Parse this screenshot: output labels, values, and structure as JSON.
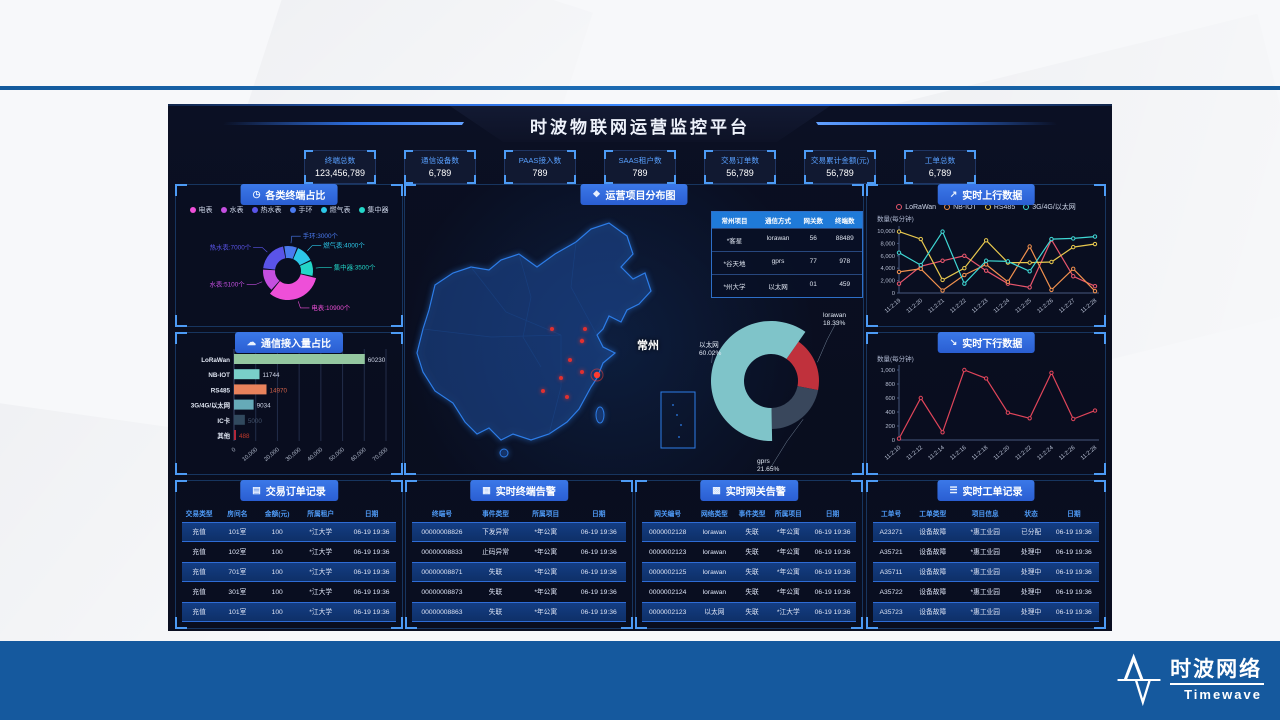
{
  "header": {
    "title": "时波物联网运营监控平台"
  },
  "stats": [
    {
      "label": "终端总数",
      "value": "123,456,789"
    },
    {
      "label": "通信设备数",
      "value": "6,789"
    },
    {
      "label": "PAAS接入数",
      "value": "789"
    },
    {
      "label": "SAAS租户数",
      "value": "789"
    },
    {
      "label": "交易订单数",
      "value": "56,789"
    },
    {
      "label": "交易累计金额(元)",
      "value": "56,789"
    },
    {
      "label": "工单总数",
      "value": "6,789"
    }
  ],
  "panels": {
    "terminal_share": {
      "title": "各类终端占比",
      "icon": "clock-icon",
      "legend": [
        {
          "name": "电表",
          "color": "#ee4fd8"
        },
        {
          "name": "水表",
          "color": "#c44fe0"
        },
        {
          "name": "热水表",
          "color": "#5a54e8"
        },
        {
          "name": "手环",
          "color": "#4a7bf0"
        },
        {
          "name": "燃气表",
          "color": "#2cc7e8"
        },
        {
          "name": "集中器",
          "color": "#23d6c8"
        }
      ],
      "chart": {
        "type": "pie",
        "slices": [
          {
            "name": "手环",
            "value": 3000,
            "color": "#4a7bf0",
            "label": "手环:3000个"
          },
          {
            "name": "燃气表",
            "value": 4000,
            "color": "#2cc7e8",
            "label": "燃气表:4000个"
          },
          {
            "name": "集中器",
            "value": 3500,
            "color": "#23d6c8",
            "label": "集中器:3500个"
          },
          {
            "name": "电表",
            "value": 10900,
            "color": "#ee4fd8",
            "label": "电表:10900个",
            "r": 29
          },
          {
            "name": "水表",
            "value": 5100,
            "color": "#c44fe0",
            "label": "水表:5100个"
          },
          {
            "name": "热水表",
            "value": 7000,
            "color": "#5a54e8",
            "label": "热水表:7000个"
          }
        ]
      }
    },
    "comm_share": {
      "title": "通信接入量占比",
      "icon": "cloud-icon",
      "chart": {
        "type": "bar",
        "categories": [
          "LoRaWan",
          "NB-IOT",
          "RS485",
          "3G/4G/以太网",
          "IC卡",
          "其他"
        ],
        "values": [
          60230,
          11744,
          14970,
          9034,
          5000,
          488
        ],
        "colors": [
          "#94c7a0",
          "#79cfc9",
          "#e8825c",
          "#66aab8",
          "#31495e",
          "#b3273a"
        ],
        "value_colors": [
          "#cfd6e8",
          "#cfd6e8",
          "#d06048",
          "#cfd6e8",
          "#44546c",
          "#c0392b"
        ],
        "xticks": [
          "0",
          "10,000",
          "20,000",
          "30,000",
          "40,000",
          "50,000",
          "60,000",
          "70,000"
        ],
        "xmax": 70000
      }
    },
    "map": {
      "title": "运营项目分布图",
      "icon": "map-icon",
      "city_label": "常州",
      "table": {
        "headers": [
          "常州项目",
          "通信方式",
          "网关数",
          "终端数"
        ],
        "rows": [
          [
            "*客星",
            "lorawan",
            "56",
            "88489"
          ],
          [
            "*谷天地",
            "gprs",
            "77",
            "978"
          ],
          [
            "*州大学",
            "以太网",
            "01",
            "459"
          ]
        ]
      },
      "chart": {
        "type": "pie",
        "slices": [
          {
            "name": "lorawan",
            "value": 18.33,
            "color": "#c0313c",
            "pct": "18.33%"
          },
          {
            "name": "gprs",
            "value": 21.65,
            "color": "#39475c",
            "pct": "21.65%"
          },
          {
            "name": "以太网",
            "value": 60.02,
            "color": "#7fc4c9",
            "pct": "60.02%",
            "r": 60
          }
        ]
      }
    },
    "up_data": {
      "title": "实时上行数据",
      "icon": "up-chart-icon",
      "ylabel": "数量(每分钟)",
      "chart": {
        "type": "line",
        "x": [
          "11:2:19",
          "11:2:20",
          "11:2:21",
          "11:2:22",
          "11:2:23",
          "11:2:24",
          "11:2:25",
          "11:2:26",
          "11:2:27",
          "11:2:28"
        ],
        "ymax": 10000,
        "yticks": [
          "0",
          "2,000",
          "4,000",
          "6,000",
          "8,000",
          "10,000"
        ],
        "series": [
          {
            "name": "LoRaWan",
            "color": "#e8566c",
            "values": [
              1500,
              4300,
              5200,
              6000,
              3600,
              1500,
              900,
              8600,
              2700,
              1100
            ]
          },
          {
            "name": "NB-IOT",
            "color": "#f2914e",
            "values": [
              3400,
              3900,
              400,
              2900,
              4600,
              1800,
              7500,
              500,
              3900,
              300
            ]
          },
          {
            "name": "RS485",
            "color": "#e8c84e",
            "values": [
              9900,
              8700,
              2100,
              4000,
              8500,
              4900,
              4900,
              5000,
              7400,
              7900
            ]
          },
          {
            "name": "3G/4G/以太网",
            "color": "#3fd8d4",
            "values": [
              6500,
              4500,
              9900,
              1500,
              5200,
              5100,
              3500,
              8700,
              8800,
              9100
            ]
          }
        ]
      }
    },
    "down_data": {
      "title": "实时下行数据",
      "icon": "down-chart-icon",
      "ylabel": "数量(每分钟)",
      "chart": {
        "type": "line",
        "x": [
          "11:2:10",
          "11:2:12",
          "11:2:14",
          "11:2:16",
          "11:2:18",
          "11:2:20",
          "11:2:22",
          "11:2:24",
          "11:2:26",
          "11:2:28"
        ],
        "ymax": 1000,
        "yticks": [
          "0",
          "200",
          "400",
          "600",
          "800",
          "1,000"
        ],
        "series": [
          {
            "name": "下行",
            "color": "#e0455a",
            "values": [
              20,
              600,
              110,
              1000,
              880,
              390,
              310,
              960,
              300,
              420
            ]
          }
        ]
      }
    },
    "orders": {
      "title": "交易订单记录",
      "icon": "order-icon",
      "headers": [
        "交易类型",
        "房间名",
        "金额(元)",
        "所属租户",
        "日期"
      ],
      "widths": [
        16,
        20,
        17,
        24,
        23
      ],
      "rows": [
        [
          "充值",
          "101室",
          "100",
          "*江大学",
          "06-19 19:36"
        ],
        [
          "充值",
          "102室",
          "100",
          "*江大学",
          "06-19 19:36"
        ],
        [
          "充值",
          "701室",
          "100",
          "*江大学",
          "06-19 19:36"
        ],
        [
          "充值",
          "301室",
          "100",
          "*江大学",
          "06-19 19:36"
        ],
        [
          "充值",
          "101室",
          "100",
          "*江大学",
          "06-19 19:36"
        ]
      ]
    },
    "terminal_alarms": {
      "title": "实时终端告警",
      "icon": "terminal-alarm-icon",
      "headers": [
        "终端号",
        "事件类型",
        "所属项目",
        "日期"
      ],
      "widths": [
        28,
        22,
        25,
        25
      ],
      "rows": [
        [
          "00000008826",
          "下发异常",
          "*年公寓",
          "06-19 19:36"
        ],
        [
          "00000008833",
          "止码异常",
          "*年公寓",
          "06-19 19:36"
        ],
        [
          "00000008871",
          "失联",
          "*年公寓",
          "06-19 19:36"
        ],
        [
          "00000008873",
          "失联",
          "*年公寓",
          "06-19 19:36"
        ],
        [
          "00000008863",
          "失联",
          "*年公寓",
          "06-19 19:36"
        ]
      ]
    },
    "gateway_alarms": {
      "title": "实时网关告警",
      "icon": "gateway-alarm-icon",
      "headers": [
        "网关编号",
        "网络类型",
        "事件类型",
        "所属项目",
        "日期"
      ],
      "widths": [
        24,
        20,
        15,
        19,
        22
      ],
      "rows": [
        [
          "0000002128",
          "lorawan",
          "失联",
          "*年公寓",
          "06-19 19:36"
        ],
        [
          "0000002123",
          "lorawan",
          "失联",
          "*年公寓",
          "06-19 19:36"
        ],
        [
          "0000002125",
          "lorawan",
          "失联",
          "*年公寓",
          "06-19 19:36"
        ],
        [
          "0000002124",
          "lorawan",
          "失联",
          "*年公寓",
          "06-19 19:36"
        ],
        [
          "0000002123",
          "以太网",
          "失联",
          "*江大学",
          "06-19 19:36"
        ]
      ]
    },
    "work_orders": {
      "title": "实时工单记录",
      "icon": "work-order-icon",
      "headers": [
        "工单号",
        "工单类型",
        "项目信息",
        "状态",
        "日期"
      ],
      "widths": [
        16,
        21,
        25,
        16,
        22
      ],
      "rows": [
        [
          "A23271",
          "设备故障",
          "*惠工业园",
          "已分配",
          "06-19 19:36"
        ],
        [
          "A35721",
          "设备故障",
          "*惠工业园",
          "处理中",
          "06-19 19:36"
        ],
        [
          "A35711",
          "设备故障",
          "*惠工业园",
          "处理中",
          "06-19 19:36"
        ],
        [
          "A35722",
          "设备故障",
          "*惠工业园",
          "处理中",
          "06-19 19:36"
        ],
        [
          "A35723",
          "设备故障",
          "*惠工业园",
          "处理中",
          "06-19 19:36"
        ]
      ]
    }
  },
  "logo": {
    "zh": "时波网络",
    "en": "Timewave"
  },
  "colors": {
    "band": "#15599e",
    "accent": "#3f8cff",
    "panel_border": "#17355f"
  }
}
